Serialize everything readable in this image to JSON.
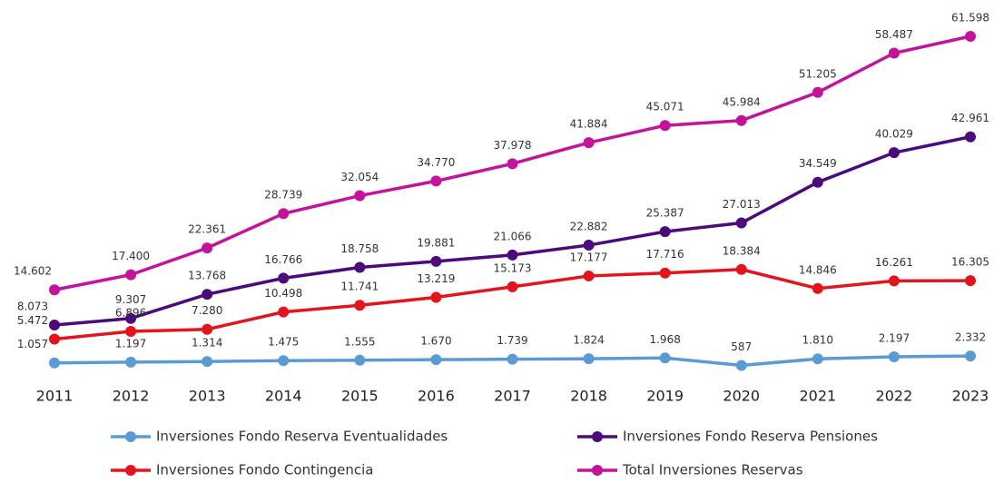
{
  "chart_data": {
    "type": "line",
    "categories": [
      "2011",
      "2012",
      "2013",
      "2014",
      "2015",
      "2016",
      "2017",
      "2018",
      "2019",
      "2020",
      "2021",
      "2022",
      "2023"
    ],
    "series": [
      {
        "name": "Inversiones Fondo Reserva Eventualidades",
        "color": "#5b9bd5",
        "values": [
          1057,
          1197,
          1314,
          1475,
          1555,
          1670,
          1739,
          1824,
          1968,
          587,
          1810,
          2197,
          2332
        ],
        "value_labels": [
          "1.057",
          "1.197",
          "1.314",
          "1.475",
          "1.555",
          "1.670",
          "1.739",
          "1.824",
          "1.968",
          "587",
          "1.810",
          "2.197",
          "2.332"
        ]
      },
      {
        "name": "Inversiones Fondo Reserva Pensiones",
        "color": "#4b0a7d",
        "values": [
          8073,
          9307,
          13768,
          16766,
          18758,
          19881,
          21066,
          22882,
          25387,
          27013,
          34549,
          40029,
          42961
        ],
        "value_labels": [
          "8.073",
          "9.307",
          "13.768",
          "16.766",
          "18.758",
          "19.881",
          "21.066",
          "22.882",
          "25.387",
          "27.013",
          "34.549",
          "40.029",
          "42.961"
        ]
      },
      {
        "name": "Inversiones Fondo Contingencia",
        "color": "#e3141c",
        "values": [
          5472,
          6896,
          7280,
          10498,
          11741,
          13219,
          15173,
          17177,
          17716,
          18384,
          14846,
          16261,
          16305
        ],
        "value_labels": [
          "5.472",
          "6.896",
          "7.280",
          "10.498",
          "11.741",
          "13.219",
          "15.173",
          "17.177",
          "17.716",
          "18.384",
          "14.846",
          "16.261",
          "16.305"
        ]
      },
      {
        "name": "Total Inversiones Reservas",
        "color": "#c4129a",
        "values": [
          14602,
          17400,
          22361,
          28739,
          32054,
          34770,
          37978,
          41884,
          45071,
          45984,
          51205,
          58487,
          61598
        ],
        "value_labels": [
          "14.602",
          "17.400",
          "22.361",
          "28.739",
          "32.054",
          "34.770",
          "37.978",
          "41.884",
          "45.071",
          "45.984",
          "51.205",
          "58.487",
          "61.598"
        ]
      }
    ]
  }
}
